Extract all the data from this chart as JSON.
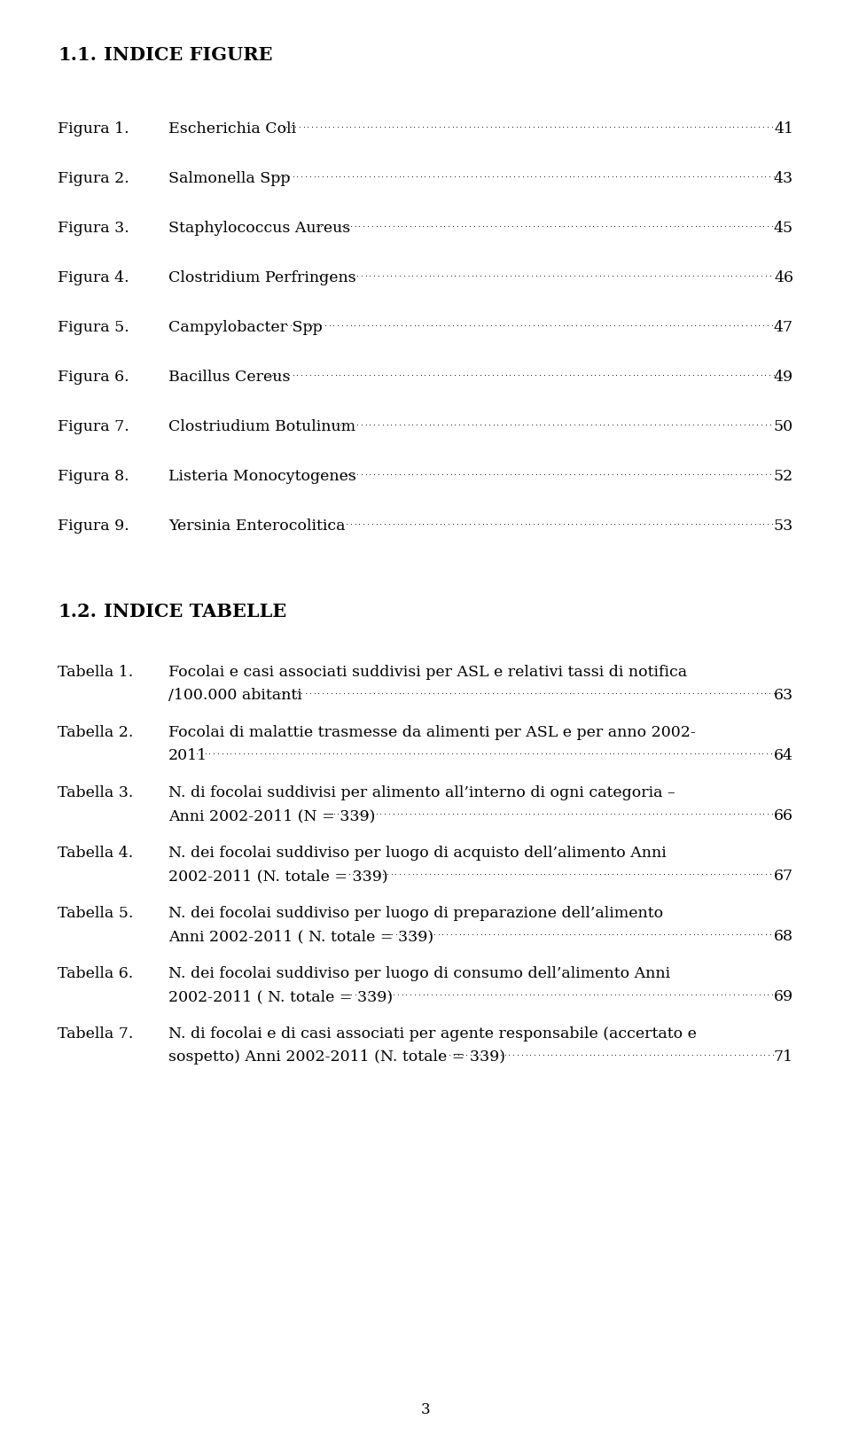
{
  "background_color": "#ffffff",
  "figure_entries": [
    {
      "label": "Figura 1.",
      "text": "Escherichia Coli",
      "page": "41"
    },
    {
      "label": "Figura 2.",
      "text": "Salmonella Spp ",
      "page": "43"
    },
    {
      "label": "Figura 3.",
      "text": "Staphylococcus Aureus ",
      "page": "45"
    },
    {
      "label": "Figura 4.",
      "text": "Clostridium Perfringens",
      "page": "46"
    },
    {
      "label": "Figura 5.",
      "text": "Campylobacter Spp ",
      "page": "47"
    },
    {
      "label": "Figura 6.",
      "text": "Bacillus Cereus",
      "page": "49"
    },
    {
      "label": "Figura 7.",
      "text": "Clostriudium Botulinum ",
      "page": "50"
    },
    {
      "label": "Figura 8.",
      "text": "Listeria Monocytogenes ",
      "page": "52"
    },
    {
      "label": "Figura 9.",
      "text": "Yersinia Enterocolitica ",
      "page": "53"
    }
  ],
  "table_entries": [
    {
      "label": "Tabella 1.",
      "line1": "Focolai e casi associati suddivisi per ASL e relativi tassi di notifica",
      "line2": "/100.000 abitanti",
      "page": "63"
    },
    {
      "label": "Tabella 2.",
      "line1": "Focolai di malattie trasmesse da alimenti per ASL e per anno 2002-",
      "line2": "2011",
      "page": "64"
    },
    {
      "label": "Tabella 3.",
      "line1": "N. di focolai suddivisi per alimento all’interno di ogni categoria –",
      "line2": "Anni 2002-2011 (N = 339)",
      "page": "66"
    },
    {
      "label": "Tabella 4.",
      "line1": "N. dei focolai suddiviso per luogo di acquisto dell’alimento Anni",
      "line2": "2002-2011 (N. totale = 339)",
      "page": "67"
    },
    {
      "label": "Tabella 5.",
      "line1": "N. dei focolai suddiviso per luogo di preparazione dell’alimento",
      "line2": "Anni 2002-2011 ( N. totale = 339)",
      "page": "68"
    },
    {
      "label": "Tabella 6.",
      "line1": "N. dei focolai suddiviso per luogo di consumo dell’alimento Anni",
      "line2": "2002-2011 ( N. totale = 339)",
      "page": "69"
    },
    {
      "label": "Tabella 7.",
      "line1": "N. di focolai e di casi associati per agente responsabile (accertato e",
      "line2": "sospetto) Anni 2002-2011 (N. totale = 339)",
      "page": "71"
    }
  ],
  "page_number": "3",
  "font_family": "DejaVu Serif",
  "title_fontsize": 15,
  "entry_fontsize": 12.5
}
